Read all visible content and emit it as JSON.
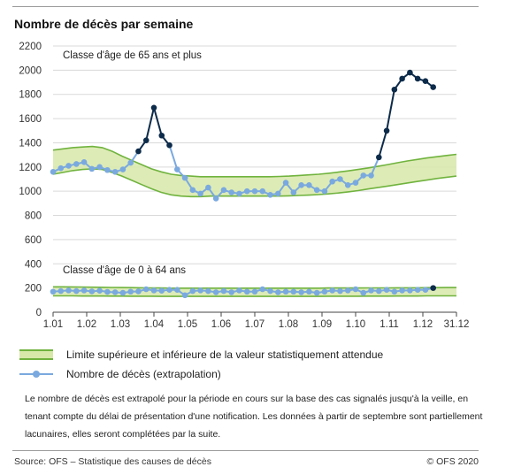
{
  "title": "Nombre de décès par semaine",
  "legend": {
    "band_label": "Limite supérieure et inférieure de la valeur statistiquement attendue",
    "line_label": "Nombre de décès (extrapolation)"
  },
  "note": "Le nombre de décès est extrapolé pour la période en cours sur la base des cas signalés jusqu'à la veille, en tenant compte du délai de présentation d'une notification. Les données à partir de septembre sont partiellement lacunaires, elles seront complétées par la suite.",
  "source": "Source: OFS – Statistique des causes de décès",
  "copyright": "© OFS 2020",
  "colors": {
    "band_fill": "#d7e8a9",
    "band_edge": "#70b33e",
    "line": "#7aa9df",
    "highlight": "#0d2b4a",
    "grid": "#d9d9d9"
  },
  "chart_data": {
    "type": "line",
    "x_tick_labels": [
      "1.01",
      "1.02",
      "1.03",
      "1.04",
      "1.05",
      "1.06",
      "1.07",
      "1.08",
      "1.09",
      "1.10",
      "1.11",
      "1.12",
      "31.12"
    ],
    "x_unit": "semaine",
    "ylim": [
      0,
      2200
    ],
    "y_ticks": [
      0,
      200,
      400,
      600,
      800,
      1000,
      1200,
      1400,
      1600,
      1800,
      2000,
      2200
    ],
    "grid": true,
    "annotations": [
      "Classe d'âge de 65 ans et plus",
      "Classe d'âge de 0 à 64 ans"
    ],
    "groups": [
      {
        "label": "Classe d'âge de 65 ans et plus",
        "band_lower": [
          1140,
          1155,
          1170,
          1180,
          1185,
          1180,
          1155,
          1125,
          1090,
          1055,
          1020,
          990,
          970,
          960,
          955,
          955,
          960,
          960,
          960,
          960,
          960,
          960,
          960,
          960,
          962,
          965,
          968,
          972,
          978,
          985,
          995,
          1005,
          1018,
          1030,
          1042,
          1055,
          1068,
          1080,
          1092,
          1105,
          1115,
          1125
        ],
        "band_upper": [
          1340,
          1350,
          1360,
          1365,
          1370,
          1360,
          1330,
          1290,
          1255,
          1220,
          1185,
          1160,
          1140,
          1130,
          1125,
          1120,
          1120,
          1120,
          1120,
          1120,
          1120,
          1120,
          1120,
          1122,
          1125,
          1130,
          1135,
          1140,
          1148,
          1158,
          1168,
          1180,
          1192,
          1205,
          1220,
          1235,
          1250,
          1262,
          1275,
          1285,
          1295,
          1305
        ],
        "deaths": [
          1160,
          1190,
          1210,
          1225,
          1240,
          1185,
          1200,
          1175,
          1160,
          1180,
          1235,
          1330,
          1420,
          1690,
          1460,
          1380,
          1180,
          1110,
          1010,
          980,
          1030,
          940,
          1010,
          990,
          980,
          1000,
          1000,
          1000,
          970,
          980,
          1070,
          990,
          1050,
          1050,
          1010,
          1000,
          1080,
          1100,
          1050,
          1070,
          1130,
          1130,
          1280,
          1500,
          1840,
          1930,
          1980,
          1930,
          1910,
          1860
        ],
        "highlighted_index_ranges": [
          [
            11,
            15
          ],
          [
            42,
            49
          ]
        ]
      },
      {
        "label": "Classe d'âge de 0 à 64 ans",
        "band_lower": [
          135,
          135,
          135,
          134,
          134,
          134,
          133,
          133,
          132,
          132,
          132,
          131,
          131,
          131,
          131,
          131,
          131,
          131,
          131,
          131,
          131,
          131,
          131,
          131,
          131,
          131,
          131,
          131,
          132,
          132,
          132,
          132,
          133,
          133,
          133,
          134,
          134,
          134,
          135,
          135,
          135,
          135
        ],
        "band_upper": [
          210,
          210,
          209,
          208,
          207,
          206,
          205,
          204,
          203,
          202,
          201,
          200,
          199,
          199,
          199,
          199,
          199,
          199,
          199,
          199,
          199,
          199,
          199,
          199,
          199,
          199,
          199,
          199,
          200,
          200,
          200,
          200,
          201,
          201,
          201,
          202,
          202,
          202,
          203,
          203,
          204,
          204
        ],
        "deaths": [
          170,
          175,
          180,
          175,
          180,
          172,
          178,
          168,
          165,
          160,
          170,
          172,
          190,
          180,
          178,
          185,
          185,
          140,
          175,
          180,
          175,
          165,
          175,
          165,
          180,
          170,
          170,
          190,
          175,
          165,
          170,
          170,
          165,
          170,
          160,
          170,
          180,
          175,
          180,
          190,
          160,
          180,
          175,
          185,
          170,
          180,
          180,
          185,
          185,
          200
        ],
        "highlighted_index_ranges": [
          [
            49,
            49
          ]
        ]
      }
    ]
  }
}
